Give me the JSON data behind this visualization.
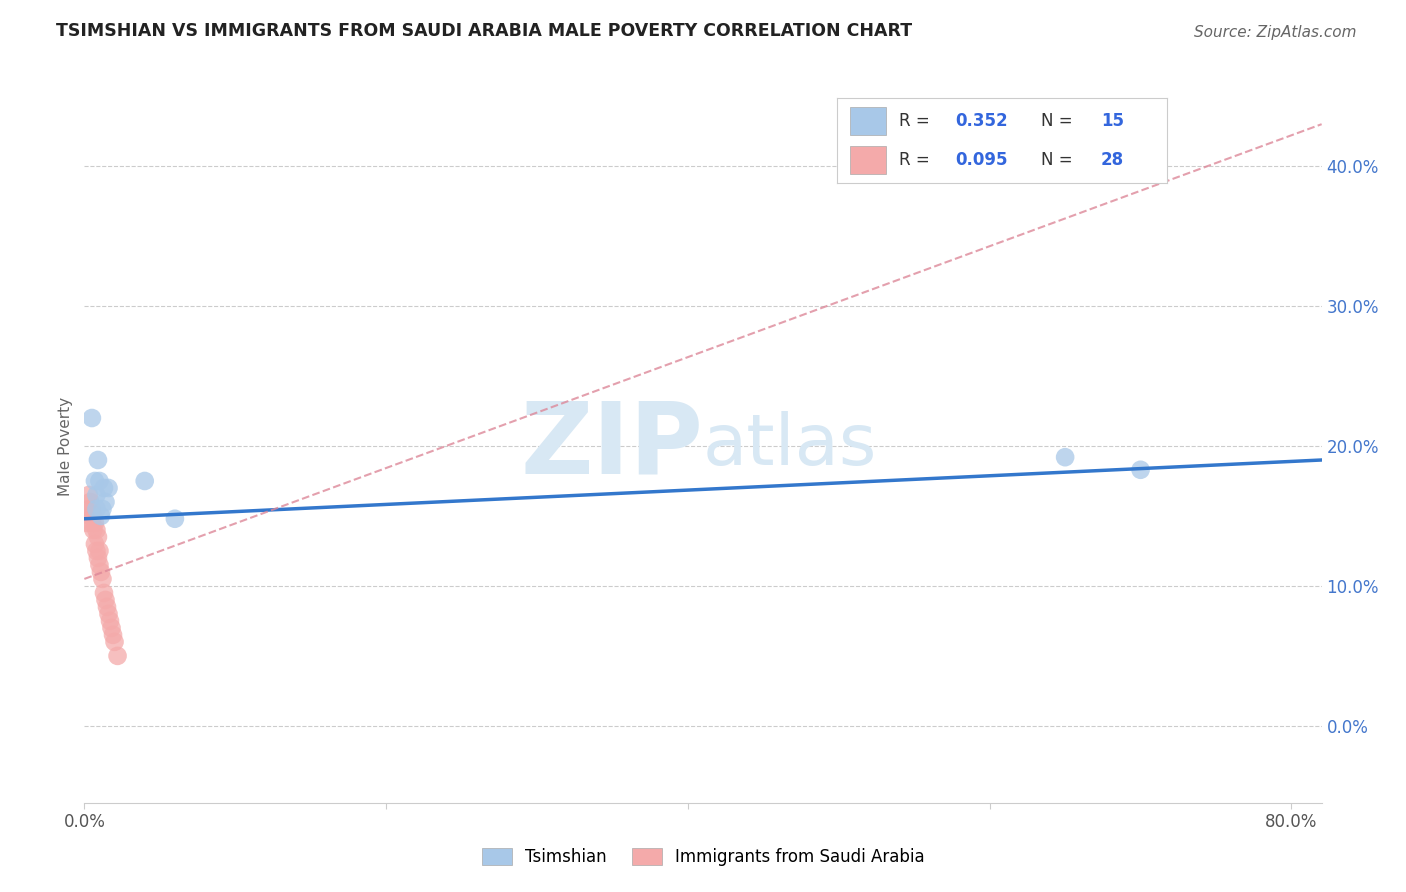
{
  "title": "TSIMSHIAN VS IMMIGRANTS FROM SAUDI ARABIA MALE POVERTY CORRELATION CHART",
  "source": "Source: ZipAtlas.com",
  "ylabel": "Male Poverty",
  "xlim": [
    0.0,
    0.82
  ],
  "ylim": [
    -0.055,
    0.455
  ],
  "xticks": [
    0.0,
    0.2,
    0.4,
    0.6,
    0.8
  ],
  "xtick_labels": [
    "0.0%",
    "",
    "",
    "",
    "80.0%"
  ],
  "yticks": [
    0.0,
    0.1,
    0.2,
    0.3,
    0.4
  ],
  "ytick_labels_right": [
    "0.0%",
    "10.0%",
    "20.0%",
    "30.0%",
    "40.0%"
  ],
  "blue_R": 0.352,
  "blue_N": 15,
  "pink_R": 0.095,
  "pink_N": 28,
  "blue_color": "#a8c8e8",
  "pink_color": "#f4aaaa",
  "blue_line_color": "#3377cc",
  "pink_line_color": "#dd8899",
  "watermark_color": "#d8e8f4",
  "tsimshian_x": [
    0.005,
    0.007,
    0.008,
    0.009,
    0.01,
    0.011,
    0.012,
    0.013,
    0.014,
    0.016,
    0.04,
    0.06,
    0.65,
    0.7,
    0.008
  ],
  "tsimshian_y": [
    0.22,
    0.175,
    0.165,
    0.19,
    0.175,
    0.15,
    0.155,
    0.17,
    0.16,
    0.17,
    0.175,
    0.148,
    0.192,
    0.183,
    0.155
  ],
  "saudi_x": [
    0.002,
    0.003,
    0.003,
    0.004,
    0.004,
    0.005,
    0.005,
    0.006,
    0.006,
    0.007,
    0.007,
    0.008,
    0.008,
    0.009,
    0.009,
    0.01,
    0.01,
    0.011,
    0.012,
    0.013,
    0.014,
    0.015,
    0.016,
    0.017,
    0.018,
    0.019,
    0.02,
    0.022
  ],
  "saudi_y": [
    0.145,
    0.155,
    0.165,
    0.15,
    0.16,
    0.145,
    0.155,
    0.14,
    0.15,
    0.13,
    0.145,
    0.125,
    0.14,
    0.12,
    0.135,
    0.115,
    0.125,
    0.11,
    0.105,
    0.095,
    0.09,
    0.085,
    0.08,
    0.075,
    0.07,
    0.065,
    0.06,
    0.05
  ],
  "blue_trendline_x0": 0.0,
  "blue_trendline_y0": 0.148,
  "blue_trendline_x1": 0.82,
  "blue_trendline_y1": 0.19,
  "pink_trendline_x0": 0.0,
  "pink_trendline_y0": 0.105,
  "pink_trendline_x1": 0.82,
  "pink_trendline_y1": 0.43,
  "background_color": "#ffffff",
  "grid_color": "#cccccc"
}
